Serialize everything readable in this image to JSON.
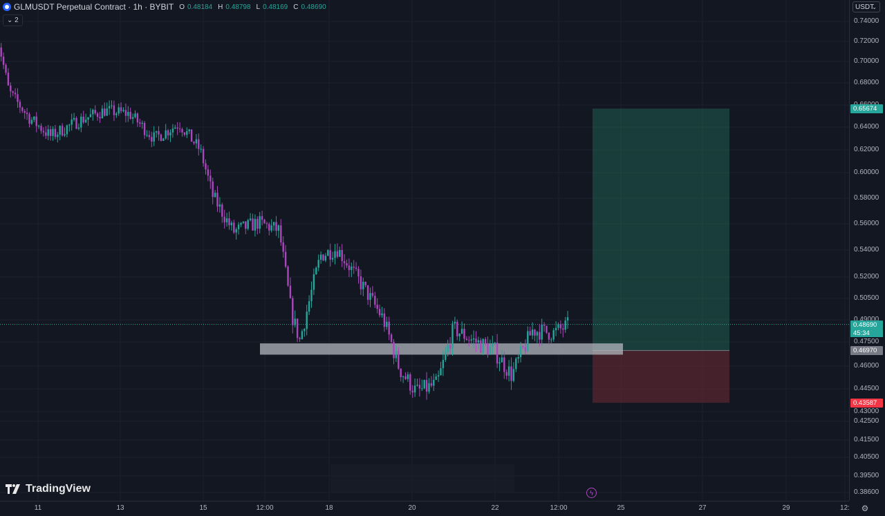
{
  "legend": {
    "title": "GLMUSDT Perpetual Contract · 1h · BYBIT",
    "open_key": "O",
    "open": "0.48184",
    "high_key": "H",
    "high": "0.48798",
    "low_key": "L",
    "low": "0.48169",
    "close_key": "C",
    "close": "0.48690",
    "collapse_label": "2"
  },
  "currency_selector": "USDT",
  "brand": "TradingView",
  "price_ticks": [
    "0.74000",
    "0.72000",
    "0.70000",
    "0.68000",
    "0.66000",
    "0.64000",
    "0.62000",
    "0.60000",
    "0.58000",
    "0.56000",
    "0.54000",
    "0.52000",
    "0.50500",
    "0.49000",
    "0.47500",
    "0.46000",
    "0.44500",
    "0.43000",
    "0.42500",
    "0.41500",
    "0.40500",
    "0.39500",
    "0.38600"
  ],
  "time_ticks": [
    "11",
    "13",
    "15",
    "12:00",
    "18",
    "20",
    "22",
    "12:00",
    "25",
    "27",
    "29",
    "12:"
  ],
  "badges": {
    "target": "0.65674",
    "current": "0.48690",
    "countdown": "45:34",
    "entry": "0.46970",
    "stop": "0.43587"
  },
  "colors": {
    "background": "#131722",
    "up": "#26a69a",
    "down": "#ab47bc",
    "target_zone": "#1f5c4f",
    "stop_zone": "#5b2731",
    "target_badge": "#26a69a",
    "stop_badge": "#f23645",
    "entry_badge": "#787b86"
  },
  "chart_data": {
    "type": "candlestick",
    "symbol": "GLMUSDT",
    "interval": "1h",
    "exchange": "BYBIT",
    "last_price": 0.4869,
    "support_zone": [
      0.4671,
      0.4741
    ],
    "position": {
      "type": "long",
      "entry": 0.4697,
      "target": 0.65674,
      "stop": 0.43587
    },
    "ylim": [
      0.3836,
      0.7456
    ],
    "price_path": [
      {
        "x": "10",
        "y": 0.728
      },
      {
        "x": "10.3",
        "y": 0.672
      },
      {
        "x": "10.8",
        "y": 0.648
      },
      {
        "x": "11.3",
        "y": 0.632
      },
      {
        "x": "12",
        "y": 0.646
      },
      {
        "x": "12.6",
        "y": 0.655
      },
      {
        "x": "13.2",
        "y": 0.652
      },
      {
        "x": "13.8",
        "y": 0.63
      },
      {
        "x": "14.4",
        "y": 0.643
      },
      {
        "x": "14.9",
        "y": 0.62
      },
      {
        "x": "15.2",
        "y": 0.582
      },
      {
        "x": "15.7",
        "y": 0.554
      },
      {
        "x": "16.3",
        "y": 0.561
      },
      {
        "x": "16.8",
        "y": 0.555
      },
      {
        "x": "17.1",
        "y": 0.494
      },
      {
        "x": "17.3",
        "y": 0.476
      },
      {
        "x": "17.8",
        "y": 0.536
      },
      {
        "x": "18.2",
        "y": 0.541
      },
      {
        "x": "18.8",
        "y": 0.514
      },
      {
        "x": "19.3",
        "y": 0.491
      },
      {
        "x": "19.7",
        "y": 0.458
      },
      {
        "x": "20.1",
        "y": 0.443
      },
      {
        "x": "20.6",
        "y": 0.448
      },
      {
        "x": "21",
        "y": 0.484
      },
      {
        "x": "21.4",
        "y": 0.477
      },
      {
        "x": "22",
        "y": 0.469
      },
      {
        "x": "22.4",
        "y": 0.454
      },
      {
        "x": "22.9",
        "y": 0.483
      },
      {
        "x": "23.4",
        "y": 0.481
      },
      {
        "x": "23.8",
        "y": 0.4869
      }
    ]
  }
}
